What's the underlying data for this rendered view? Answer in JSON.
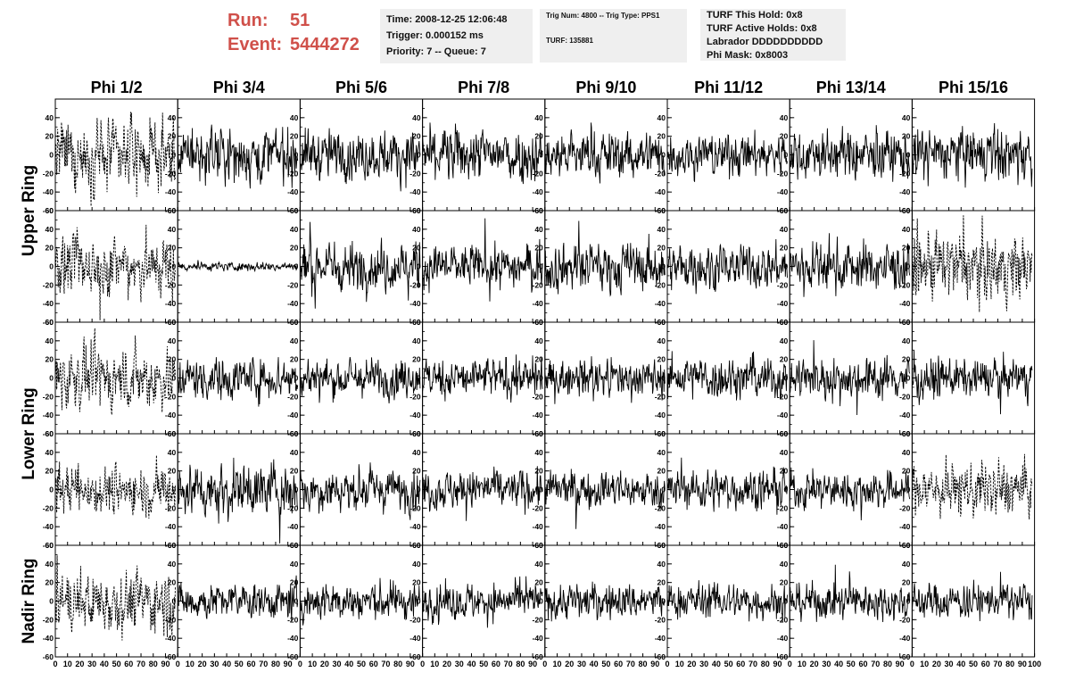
{
  "header": {
    "run_label": "Run:",
    "run_value": "51",
    "event_label": "Event:",
    "event_value": "5444272",
    "time_box": [
      "Time: 2008-12-25 12:06:48",
      "Trigger: 0.000152 ms",
      "Priority: 7 -- Queue: 7"
    ],
    "trig_box": [
      "Trig Num: 4800 -- Trig Type: PPS1",
      "",
      "TURF: 135881"
    ],
    "turf_box": [
      "TURF This Hold: 0x8",
      "TURF Active Holds: 0x8",
      "Labrador DDDDDDDDDD",
      "Phi Mask: 0x8003"
    ]
  },
  "colors": {
    "header_text": "#d0504a",
    "box_bg": "#efefef",
    "trace": "#000000"
  },
  "chart_data": {
    "type": "line",
    "columns": [
      "Phi 1/2",
      "Phi 3/4",
      "Phi 5/6",
      "Phi 7/8",
      "Phi 9/10",
      "Phi 11/12",
      "Phi 13/14",
      "Phi 15/16"
    ],
    "rows": [
      "Upper Ring",
      "Lower Ring",
      "Nadir Ring"
    ],
    "xlim": [
      0,
      100
    ],
    "ylim": [
      -60,
      60
    ],
    "x_ticks": [
      "0",
      "10",
      "20",
      "30",
      "40",
      "50",
      "60",
      "70",
      "80",
      "90",
      "100"
    ],
    "y_ticks": [
      "60",
      "40",
      "20",
      "0",
      "-20",
      "-40",
      "-60"
    ],
    "panel_rows": 5,
    "panel_cols": 8,
    "samples_per_trace": 256,
    "x_max_sample": 98,
    "amplitudes": [
      [
        22,
        18,
        16,
        18,
        16,
        14,
        16,
        18
      ],
      [
        20,
        3,
        16,
        14,
        16,
        14,
        16,
        22
      ],
      [
        20,
        14,
        13,
        13,
        12,
        14,
        14,
        13
      ],
      [
        16,
        18,
        14,
        13,
        12,
        13,
        12,
        18
      ],
      [
        20,
        12,
        13,
        12,
        12,
        12,
        12,
        12
      ]
    ],
    "dashed_panels": [
      [
        0,
        0
      ],
      [
        1,
        0
      ],
      [
        1,
        7
      ],
      [
        2,
        0
      ],
      [
        3,
        0
      ],
      [
        3,
        7
      ],
      [
        4,
        0
      ]
    ]
  }
}
